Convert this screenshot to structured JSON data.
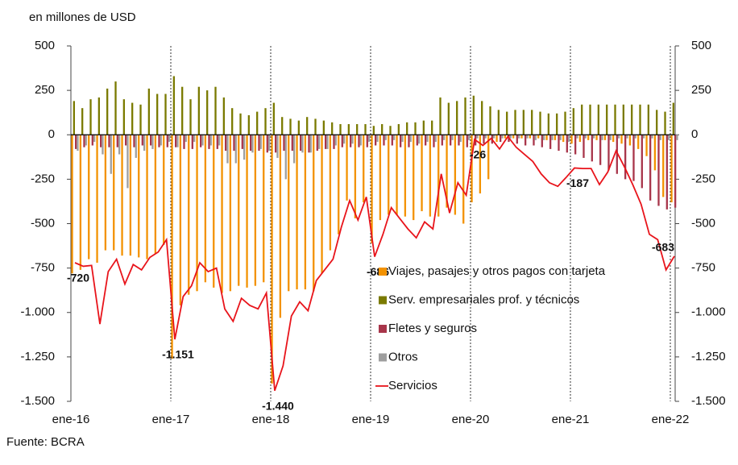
{
  "chart_data": {
    "type": "bar",
    "subtitle": "en millones de USD",
    "source": "Fuente: BCRA",
    "categories": [
      "ene-16",
      null,
      null,
      null,
      null,
      null,
      null,
      null,
      null,
      null,
      null,
      null,
      "ene-17",
      null,
      null,
      null,
      null,
      null,
      null,
      null,
      null,
      null,
      null,
      null,
      "ene-18",
      null,
      null,
      null,
      null,
      null,
      null,
      null,
      null,
      null,
      null,
      null,
      "ene-19",
      null,
      null,
      null,
      null,
      null,
      null,
      null,
      null,
      null,
      null,
      null,
      "ene-20",
      null,
      null,
      null,
      null,
      null,
      null,
      null,
      null,
      null,
      null,
      null,
      "ene-21",
      null,
      null,
      null,
      null,
      null,
      null,
      null,
      null,
      null,
      null,
      null,
      "ene-22"
    ],
    "series": [
      {
        "name": "Viajes, pasajes y otros pagos con tarjeta",
        "color": "#f39200",
        "values": [
          -780,
          -760,
          -700,
          -720,
          -650,
          -650,
          -680,
          -680,
          -690,
          -700,
          -670,
          -620,
          -1260,
          -960,
          -900,
          -880,
          -830,
          -860,
          -890,
          -880,
          -850,
          -860,
          -850,
          -830,
          -1400,
          -1030,
          -880,
          -870,
          -870,
          -880,
          -780,
          -650,
          -560,
          -370,
          -470,
          -380,
          -610,
          -480,
          -450,
          -450,
          -460,
          -480,
          -430,
          -460,
          -460,
          -410,
          -450,
          -500,
          -380,
          -330,
          -250,
          -40,
          -20,
          -20,
          -20,
          -20,
          -20,
          -30,
          -30,
          -40,
          -50,
          -40,
          -30,
          -30,
          -30,
          -40,
          -50,
          -60,
          -80,
          -120,
          -200,
          -350,
          -380
        ]
      },
      {
        "name": "Serv. empresariales prof. y técnicos",
        "color": "#7a7a00",
        "values": [
          190,
          150,
          200,
          210,
          260,
          300,
          200,
          180,
          170,
          260,
          230,
          230,
          330,
          270,
          200,
          270,
          250,
          270,
          210,
          150,
          120,
          110,
          130,
          150,
          180,
          100,
          90,
          80,
          100,
          90,
          80,
          70,
          60,
          60,
          60,
          60,
          50,
          60,
          50,
          60,
          70,
          70,
          80,
          80,
          210,
          180,
          190,
          210,
          220,
          190,
          160,
          140,
          130,
          140,
          140,
          140,
          130,
          120,
          120,
          130,
          150,
          170,
          170,
          170,
          170,
          170,
          170,
          170,
          170,
          170,
          140,
          130,
          180
        ]
      },
      {
        "name": "Fletes y seguros",
        "color": "#a8354a",
        "values": [
          -80,
          -70,
          -60,
          -70,
          -70,
          -70,
          -60,
          -70,
          -60,
          -60,
          -70,
          -70,
          -70,
          -80,
          -80,
          -70,
          -80,
          -80,
          -90,
          -90,
          -80,
          -90,
          -90,
          -100,
          -100,
          -90,
          -90,
          -90,
          -100,
          -90,
          -80,
          -80,
          -70,
          -70,
          -70,
          -70,
          -60,
          -60,
          -60,
          -70,
          -70,
          -60,
          -60,
          -70,
          -60,
          -60,
          -60,
          -70,
          -60,
          -50,
          -50,
          -40,
          -40,
          -50,
          -60,
          -60,
          -70,
          -80,
          -90,
          -100,
          -110,
          -130,
          -150,
          -170,
          -200,
          -220,
          -250,
          -260,
          -300,
          -370,
          -400,
          -420,
          -410
        ]
      },
      {
        "name": "Otros",
        "color": "#9e9e9e",
        "values": [
          -90,
          -60,
          -40,
          -110,
          -220,
          -110,
          -300,
          -130,
          -90,
          -80,
          -60,
          -40,
          -70,
          -40,
          -40,
          -60,
          -60,
          -60,
          -160,
          -160,
          -140,
          -100,
          -80,
          -90,
          -130,
          -250,
          -160,
          -100,
          -100,
          -80,
          -80,
          -60,
          -50,
          -50,
          -60,
          -40,
          -40,
          -30,
          -30,
          -40,
          -40,
          -50,
          -40,
          -40,
          -30,
          -30,
          -40,
          -30,
          -20,
          -20,
          -20,
          -20,
          -20,
          -20,
          -20,
          -30,
          -30,
          -30,
          -30,
          -40,
          -20,
          -20,
          -20,
          -30,
          -30,
          -20,
          -20,
          -20,
          -20,
          -20,
          -30,
          -30,
          -30
        ]
      },
      {
        "name": "Servicios",
        "type": "line",
        "color": "#e8141b",
        "values": [
          -720,
          -740,
          -735,
          -1065,
          -770,
          -700,
          -840,
          -730,
          -760,
          -690,
          -660,
          -590,
          -1151,
          -910,
          -850,
          -720,
          -770,
          -750,
          -980,
          -1050,
          -920,
          -960,
          -980,
          -890,
          -1440,
          -1300,
          -1020,
          -940,
          -990,
          -820,
          -760,
          -700,
          -520,
          -370,
          -480,
          -350,
          -686,
          -560,
          -410,
          -470,
          -530,
          -580,
          -490,
          -530,
          -220,
          -440,
          -270,
          -340,
          -26,
          -60,
          -20,
          -80,
          -10,
          -70,
          -110,
          -150,
          -220,
          -270,
          -290,
          -240,
          -187,
          -190,
          -190,
          -280,
          -210,
          -90,
          -180,
          -280,
          -390,
          -560,
          -590,
          -760,
          -683
        ],
        "value_labels": [
          "-720",
          null,
          null,
          null,
          null,
          null,
          null,
          null,
          null,
          null,
          null,
          null,
          "-1.151",
          null,
          null,
          null,
          null,
          null,
          null,
          null,
          null,
          null,
          null,
          null,
          "-1.440",
          null,
          null,
          null,
          null,
          null,
          null,
          null,
          null,
          null,
          null,
          null,
          "-686",
          null,
          null,
          null,
          null,
          null,
          null,
          null,
          null,
          null,
          null,
          null,
          "-26",
          null,
          null,
          null,
          null,
          null,
          null,
          null,
          null,
          null,
          null,
          null,
          "-187",
          null,
          null,
          null,
          null,
          null,
          null,
          null,
          null,
          null,
          null,
          null,
          "-683"
        ]
      }
    ],
    "ylim": [
      -1500,
      500
    ],
    "yticks": [
      {
        "value": -1500,
        "label": "-1.500"
      },
      {
        "value": -1250,
        "label": "-1.250"
      },
      {
        "value": -1000,
        "label": "-1.000"
      },
      -750,
      -500,
      -250,
      0,
      250,
      500
    ],
    "y2lim": [
      -1500,
      500
    ],
    "y2ticks": [
      {
        "value": -1500,
        "label": "-1.500"
      },
      {
        "value": -1250,
        "label": "-1.250"
      },
      {
        "value": -1000,
        "label": "-1.000"
      },
      -750,
      -500,
      -250,
      0,
      250,
      500
    ]
  }
}
